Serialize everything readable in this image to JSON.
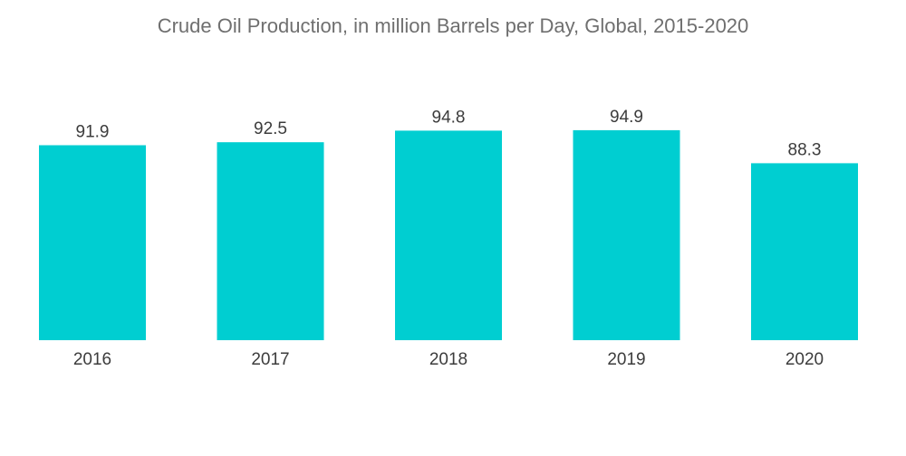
{
  "chart_data": {
    "type": "bar",
    "title": "Crude Oil Production, in million Barrels per Day, Global, 2015-2020",
    "categories": [
      "2016",
      "2017",
      "2018",
      "2019",
      "2020"
    ],
    "values": [
      91.9,
      92.5,
      94.8,
      94.9,
      88.3
    ],
    "value_labels": [
      "91.9",
      "92.5",
      "94.8",
      "94.9",
      "88.3"
    ],
    "xlabel": "",
    "ylabel": "",
    "grid": false,
    "legend": "none",
    "bar_color": "#00ced1"
  }
}
